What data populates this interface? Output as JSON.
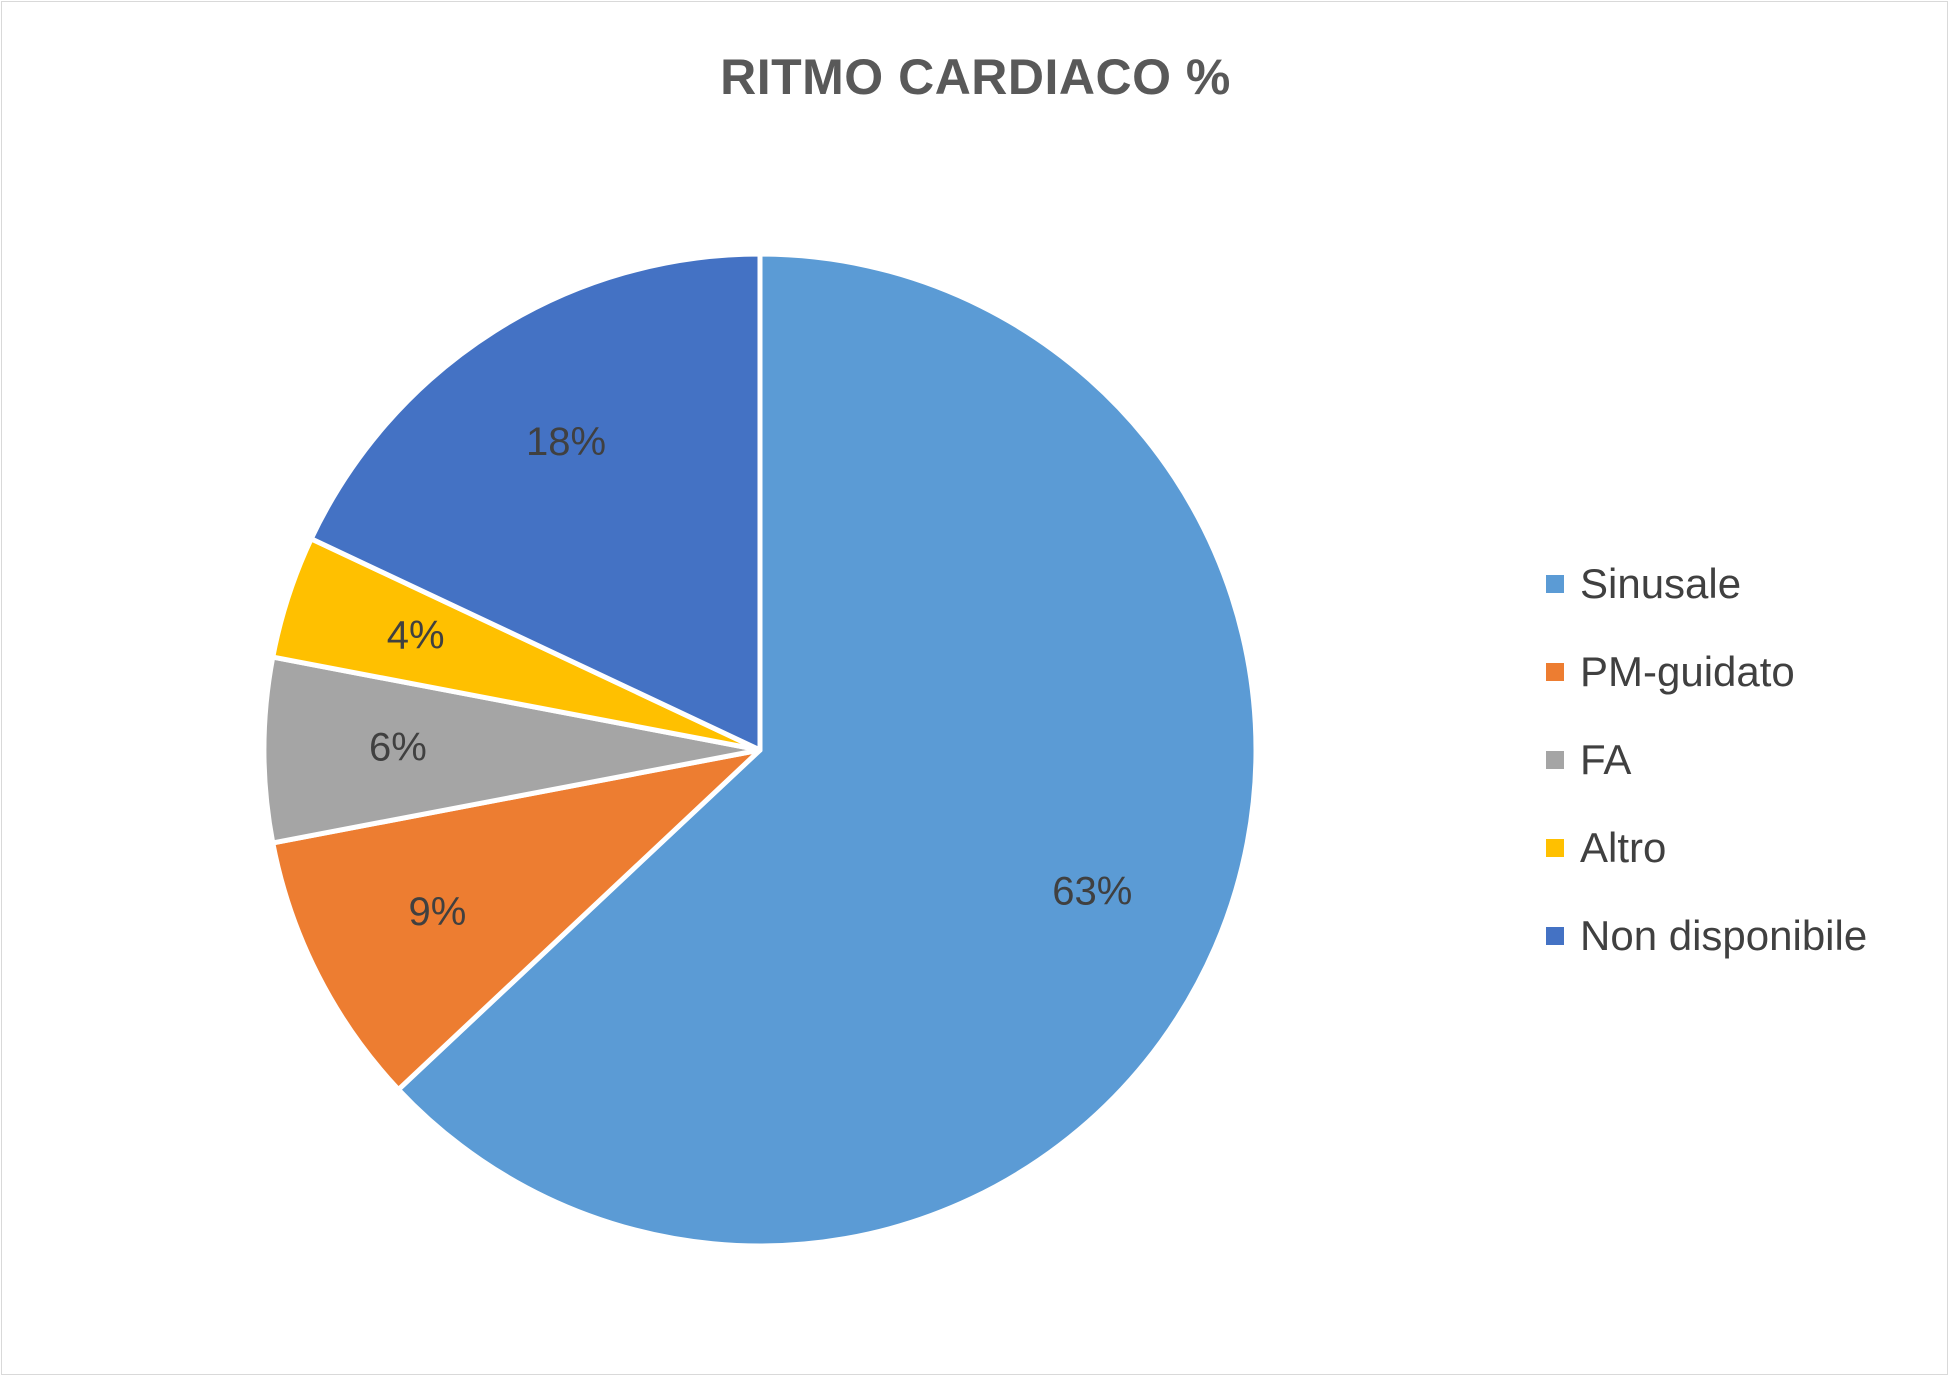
{
  "chart_data": {
    "type": "pie",
    "title": "RITMO CARDIACO %",
    "categories": [
      "Sinusale",
      "PM-guidato",
      "FA",
      "Altro",
      "Non disponibile"
    ],
    "values": [
      63,
      9,
      6,
      4,
      18
    ],
    "data_labels": [
      "63%",
      "9%",
      "6%",
      "4%",
      "18%"
    ],
    "colors": [
      "#5B9BD5",
      "#ED7D31",
      "#A5A5A5",
      "#FFC000",
      "#4472C4"
    ],
    "start_angle_deg": 0,
    "direction": "clockwise",
    "legend_position": "right",
    "unit": "%"
  }
}
